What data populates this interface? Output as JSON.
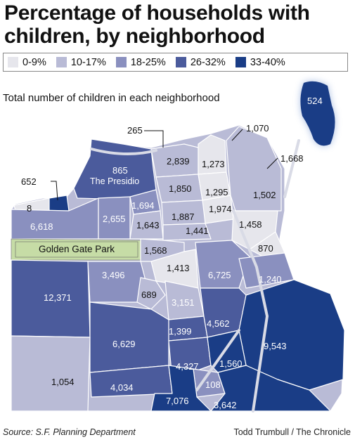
{
  "title": "Percentage of households with children, by neighborhood",
  "legend": [
    {
      "label": "0-9%",
      "color": "#e6e6ec"
    },
    {
      "label": "10-17%",
      "color": "#b9bbd6"
    },
    {
      "label": "18-25%",
      "color": "#8a90bf"
    },
    {
      "label": "26-32%",
      "color": "#4b5b9c"
    },
    {
      "label": "33-40%",
      "color": "#1a3d86"
    }
  ],
  "subtitle": "Total number of children in each neighborhood",
  "park_label": "Golden Gate Park",
  "presidio_value": "865",
  "presidio_name": "The Presidio",
  "neighborhood_values": [
    "524",
    "265",
    "1,070",
    "1,668",
    "652",
    "8",
    "2,839",
    "1,273",
    "1,850",
    "1,295",
    "1,502",
    "1,694",
    "1,974",
    "1,887",
    "2,655",
    "1,643",
    "6,618",
    "1,441",
    "1,458",
    "1,568",
    "870",
    "1,413",
    "3,496",
    "6,725",
    "1,240",
    "12,371",
    "689",
    "3,151",
    "4,562",
    "1,399",
    "9,543",
    "6,629",
    "4,327",
    "1,560",
    "1,054",
    "108",
    "4,034",
    "7,076",
    "3,642"
  ],
  "source": "Source: S.F. Planning Department",
  "credit": "Todd Trumbull / The Chronicle"
}
